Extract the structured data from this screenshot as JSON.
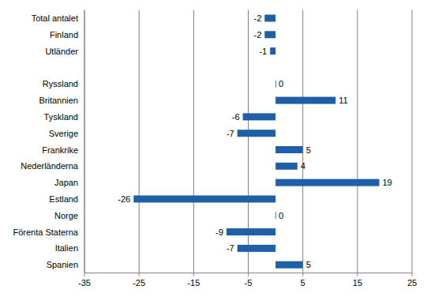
{
  "chart_data": {
    "type": "bar",
    "orientation": "horizontal",
    "categories": [
      "Total antalet",
      "Finland",
      "Utländer",
      null,
      "Ryssland",
      "Britannien",
      "Tyskland",
      "Sverige",
      "Frankrike",
      "Nederländerna",
      "Japan",
      "Estland",
      "Norge",
      "Förenta Staterna",
      "Italien",
      "Spanien"
    ],
    "values": [
      -2,
      -2,
      -1,
      null,
      0,
      11,
      -6,
      -7,
      5,
      4,
      19,
      -26,
      0,
      -9,
      -7,
      5
    ],
    "color": "#1f5fa8",
    "xlim": [
      -35,
      25
    ],
    "xticks": [
      -35,
      -25,
      -15,
      -5,
      5,
      15,
      25
    ],
    "grid": true,
    "data_labels": true
  }
}
